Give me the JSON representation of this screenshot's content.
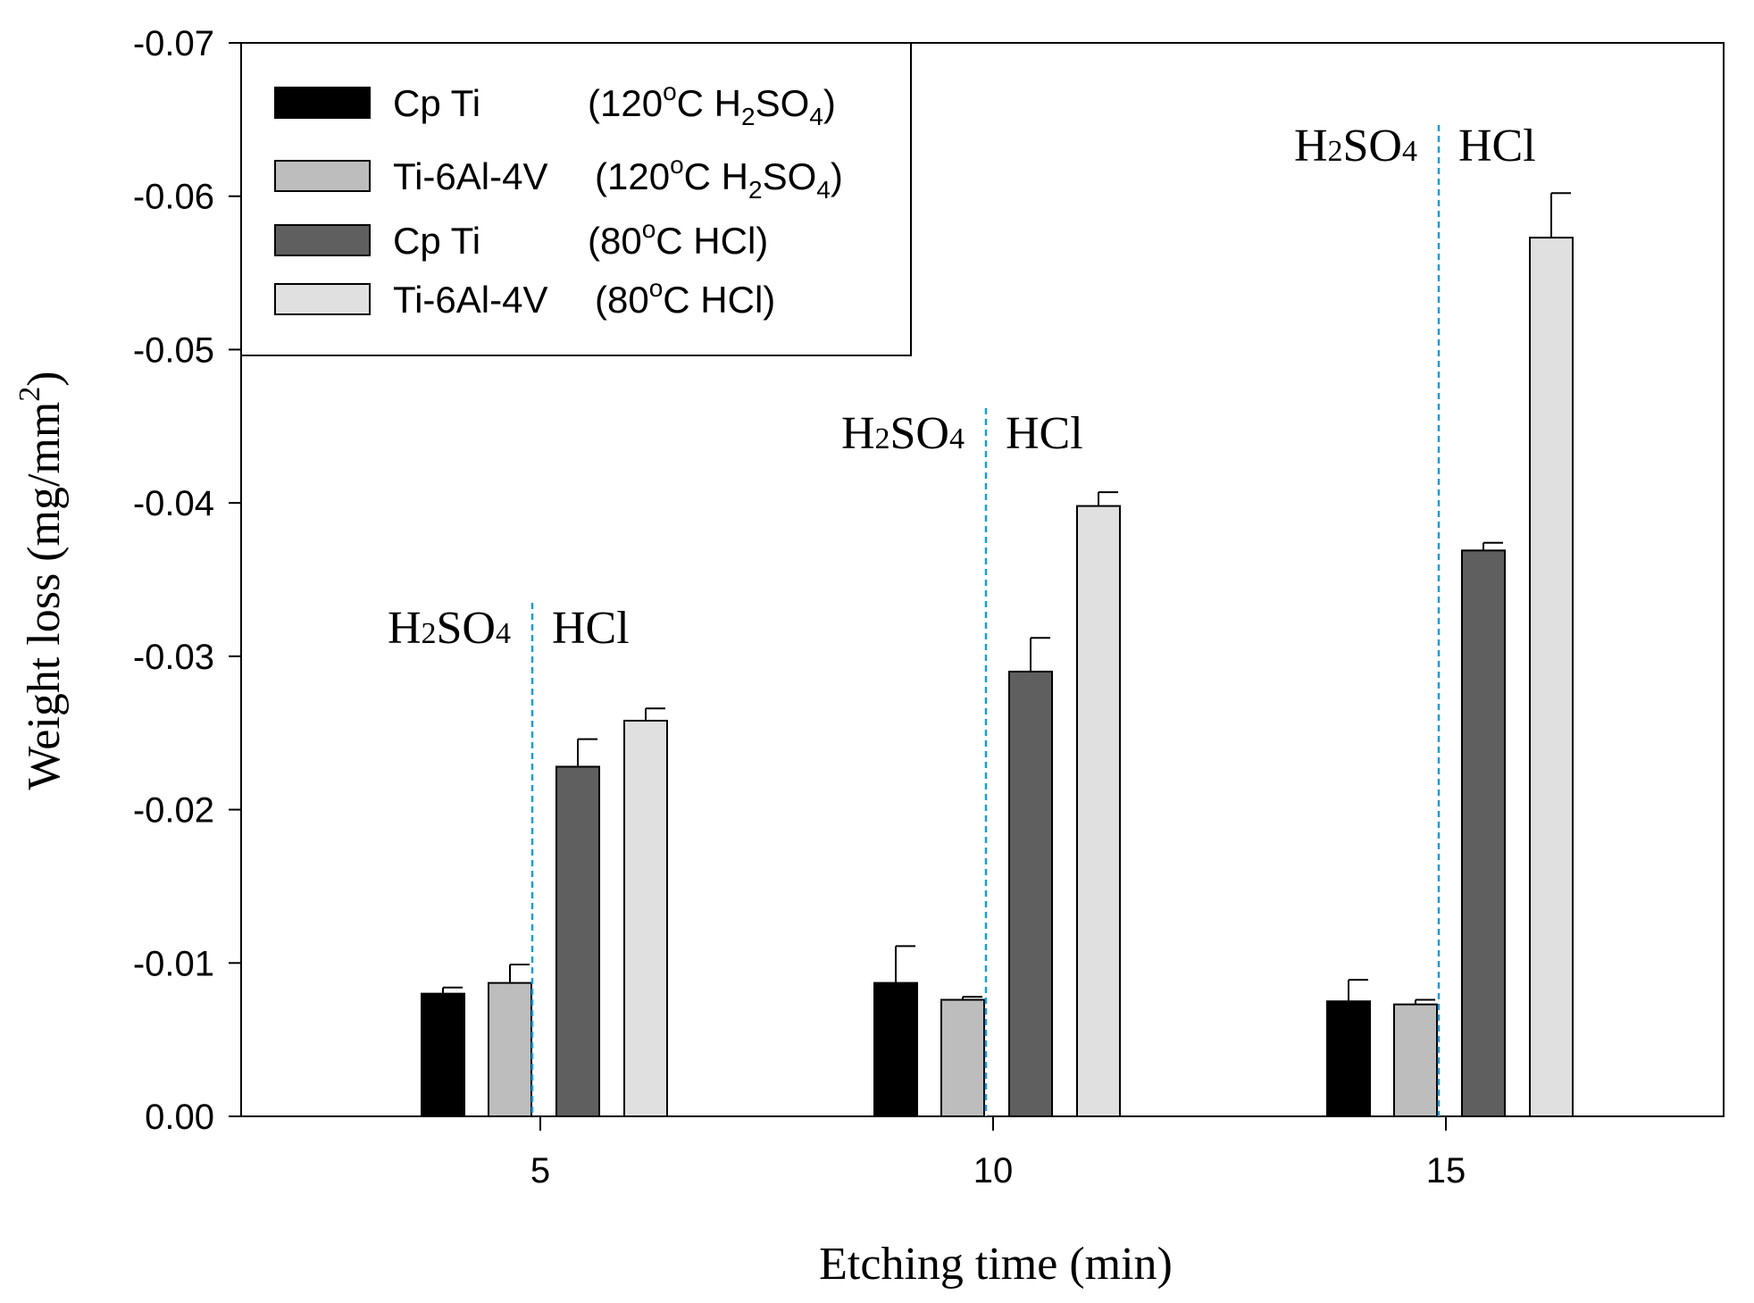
{
  "chart_data": {
    "type": "bar",
    "title": "",
    "xlabel": "Etching time  (min)",
    "ylabel": "Weight loss (mg/mm",
    "ylabel_sup": "2",
    "ylabel_close": ")",
    "categories": [
      "5",
      "10",
      "15"
    ],
    "ylim": [
      0.0,
      -0.07
    ],
    "yticks": [
      "0.00",
      "-0.01",
      "-0.02",
      "-0.03",
      "-0.04",
      "-0.05",
      "-0.06",
      "-0.07"
    ],
    "ytick_values": [
      0,
      -0.01,
      -0.02,
      -0.03,
      -0.04,
      -0.05,
      -0.06,
      -0.07
    ],
    "legend_position": "top-left",
    "series": [
      {
        "name": "Cp Ti (120°C H2SO4)",
        "label_main": "Cp Ti",
        "cond_temp": "(120",
        "cond_deg": "o",
        "cond_unit": "C  H",
        "cond_sub1": "2",
        "cond_mid": "SO",
        "cond_sub2": "4",
        "cond_end": ")",
        "color": "#000000",
        "values": [
          -0.008,
          -0.0087,
          -0.0075
        ],
        "errors": [
          0.0004,
          0.0024,
          0.0014
        ]
      },
      {
        "name": "Ti-6Al-4V (120°C H2SO4)",
        "label_main": "Ti-6Al-4V",
        "cond_temp": "(120",
        "cond_deg": "o",
        "cond_unit": "C  H",
        "cond_sub1": "2",
        "cond_mid": "SO",
        "cond_sub2": "4",
        "cond_end": ")",
        "color": "#bdbdbd",
        "values": [
          -0.0087,
          -0.0076,
          -0.0073
        ],
        "errors": [
          0.0012,
          0.0002,
          0.0003
        ]
      },
      {
        "name": "Cp Ti (80°C HCl)",
        "label_main": "Cp Ti",
        "cond_temp": "(80",
        "cond_deg": "o",
        "cond_unit": "C  HCl)",
        "color": "#5f5f5f",
        "values": [
          -0.0228,
          -0.029,
          -0.0369
        ],
        "errors": [
          0.0018,
          0.0022,
          0.0005
        ]
      },
      {
        "name": "Ti-6Al-4V (80°C HCl)",
        "label_main": "Ti-6Al-4V",
        "cond_temp": "(80",
        "cond_deg": "o",
        "cond_unit": "C  HCl)",
        "color": "#e0e0e0",
        "values": [
          -0.0258,
          -0.0398,
          -0.0573
        ],
        "errors": [
          0.0008,
          0.0009,
          0.0029
        ]
      }
    ],
    "annotations": [
      {
        "left": "H",
        "sub": "2",
        "mid": "SO",
        "sub2": "4",
        "right": "HCl",
        "category": "5"
      },
      {
        "left": "H",
        "sub": "2",
        "mid": "SO",
        "sub2": "4",
        "right": "HCl",
        "category": "10"
      },
      {
        "left": "H",
        "sub": "2",
        "mid": "SO",
        "sub2": "4",
        "right": "HCl",
        "category": "15"
      }
    ],
    "divider_color": "#1a9bdc"
  }
}
